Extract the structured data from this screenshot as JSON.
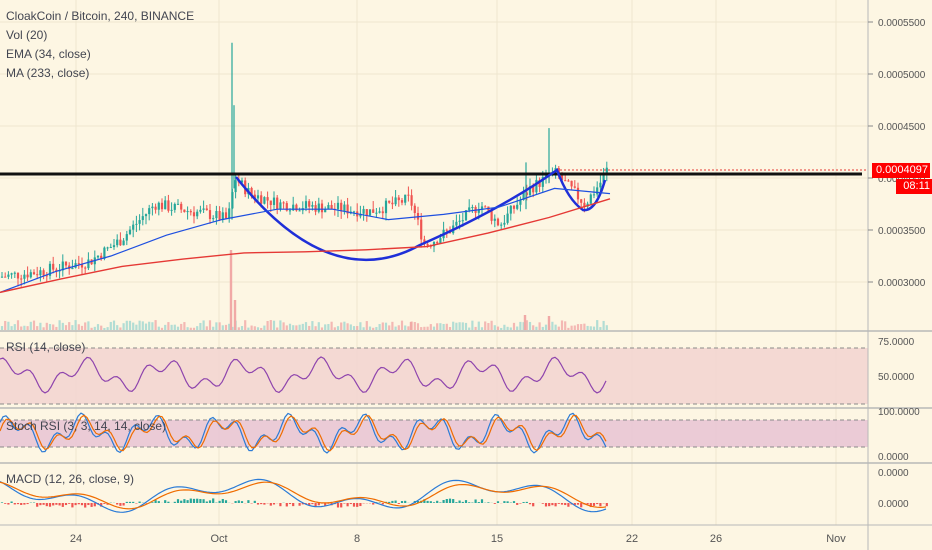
{
  "header": {
    "title": "CloakCoin / Bitcoin, 240, BINANCE",
    "indicators": [
      "Vol (20)",
      "EMA (34, close)",
      "MA (233, close)"
    ]
  },
  "price_tag": {
    "value": "0.0004097",
    "countdown": "08:11"
  },
  "panes": {
    "rsi": {
      "label": "RSI (14, close)",
      "ticks": [
        "75.0000",
        "50.0000"
      ]
    },
    "stoch": {
      "label": "Stoch RSI (3, 3, 14, 14, close)",
      "ticks": [
        "100.0000",
        "0.0000"
      ]
    },
    "macd": {
      "label": "MACD (12, 26, close, 9)",
      "ticks": [
        "0.0000",
        "0.0000"
      ]
    }
  },
  "colors": {
    "background": "#fdf6e3",
    "up": "#26a69a",
    "down": "#ef5350",
    "ema": "#1e4fe0",
    "ma": "#e53935",
    "cup": "#1f2fd8",
    "resistance": "#111111",
    "rsi": "#8e44ad",
    "stoch_k": "#2b7bd6",
    "stoch_d": "#ef6c00",
    "macd": "#2b7bd6",
    "signal": "#ef6c00"
  },
  "chart_data": {
    "type": "candlestick",
    "x_ticks": [
      "24",
      "Oct",
      "8",
      "15",
      "22",
      "26",
      "Nov"
    ],
    "y_ticks": [
      "0.0005500",
      "0.0005000",
      "0.0004500",
      "0.0004000",
      "0.0003500",
      "0.0003000"
    ],
    "ylim": [
      0.00026,
      0.00057
    ],
    "resistance_level": 0.000408,
    "current_price": 0.0004097,
    "series": [
      {
        "name": "EMA (34, close)",
        "values": [
          0.00029,
          0.00031,
          0.000325,
          0.000345,
          0.00036,
          0.00037,
          0.00037,
          0.00036,
          0.000365,
          0.000372,
          0.00039,
          0.000385
        ]
      },
      {
        "name": "MA (233, close)",
        "values": [
          0.00029,
          0.000303,
          0.000315,
          0.000322,
          0.000328,
          0.000329,
          0.000331,
          0.000334,
          0.000347,
          0.000362,
          0.00038
        ]
      }
    ]
  }
}
